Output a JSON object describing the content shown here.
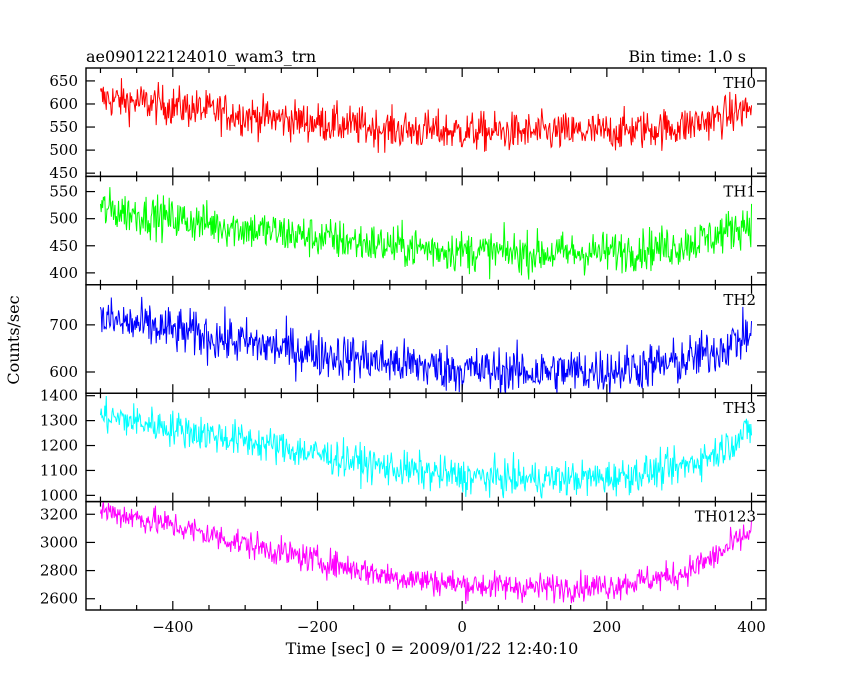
{
  "header": {
    "object_name": "ae090122124010_wam3_trn",
    "bin_time": "Bin time: 1.0 s"
  },
  "chart_data": {
    "type": "line",
    "xlabel": "Time [sec] 0 = 2009/01/22 12:40:10",
    "ylabel": "Counts/sec",
    "xlim": [
      -520,
      420
    ],
    "xticks": [
      -400,
      -200,
      0,
      200,
      400
    ],
    "xtick_labels": [
      "−400",
      "−200",
      "0",
      "200",
      "400"
    ],
    "x_range_data": [
      -500,
      400
    ],
    "bin_time_sec": 1.0,
    "grid": false,
    "panels": [
      {
        "name": "TH0",
        "color": "#ff0000",
        "ylim": [
          443,
          678
        ],
        "yticks": [
          450,
          500,
          550,
          600,
          650
        ],
        "trend_x": [
          -500,
          -400,
          -300,
          -200,
          -100,
          0,
          100,
          200,
          300,
          350,
          400
        ],
        "trend_y": [
          612,
          596,
          575,
          560,
          545,
          540,
          538,
          540,
          550,
          568,
          592
        ],
        "noise_amplitude": 30
      },
      {
        "name": "TH1",
        "color": "#00ff00",
        "ylim": [
          378,
          578
        ],
        "yticks": [
          400,
          450,
          500,
          550
        ],
        "trend_x": [
          -500,
          -400,
          -300,
          -200,
          -100,
          0,
          100,
          200,
          300,
          350,
          400
        ],
        "trend_y": [
          518,
          500,
          482,
          465,
          450,
          440,
          436,
          438,
          450,
          468,
          495
        ],
        "noise_amplitude": 27
      },
      {
        "name": "TH2",
        "color": "#0000ff",
        "ylim": [
          555,
          785
        ],
        "yticks": [
          600,
          700
        ],
        "trend_x": [
          -500,
          -400,
          -300,
          -200,
          -100,
          0,
          100,
          200,
          300,
          350,
          400
        ],
        "trend_y": [
          712,
          688,
          662,
          640,
          620,
          605,
          600,
          603,
          620,
          645,
          682
        ],
        "noise_amplitude": 35
      },
      {
        "name": "TH3",
        "color": "#00ffff",
        "ylim": [
          975,
          1410
        ],
        "yticks": [
          1000,
          1100,
          1200,
          1300,
          1400
        ],
        "trend_x": [
          -500,
          -400,
          -300,
          -200,
          -100,
          0,
          100,
          200,
          300,
          350,
          400
        ],
        "trend_y": [
          1320,
          1270,
          1220,
          1165,
          1110,
          1075,
          1065,
          1070,
          1110,
          1170,
          1265
        ],
        "noise_amplitude": 50
      },
      {
        "name": "TH0123",
        "color": "#ff00ff",
        "ylim": [
          2520,
          3290
        ],
        "yticks": [
          2600,
          2800,
          3000,
          3200
        ],
        "trend_x": [
          -500,
          -400,
          -300,
          -200,
          -100,
          0,
          100,
          200,
          300,
          350,
          400
        ],
        "trend_y": [
          3230,
          3120,
          2990,
          2870,
          2760,
          2700,
          2680,
          2690,
          2770,
          2900,
          3080
        ],
        "noise_amplitude": 70
      }
    ]
  }
}
